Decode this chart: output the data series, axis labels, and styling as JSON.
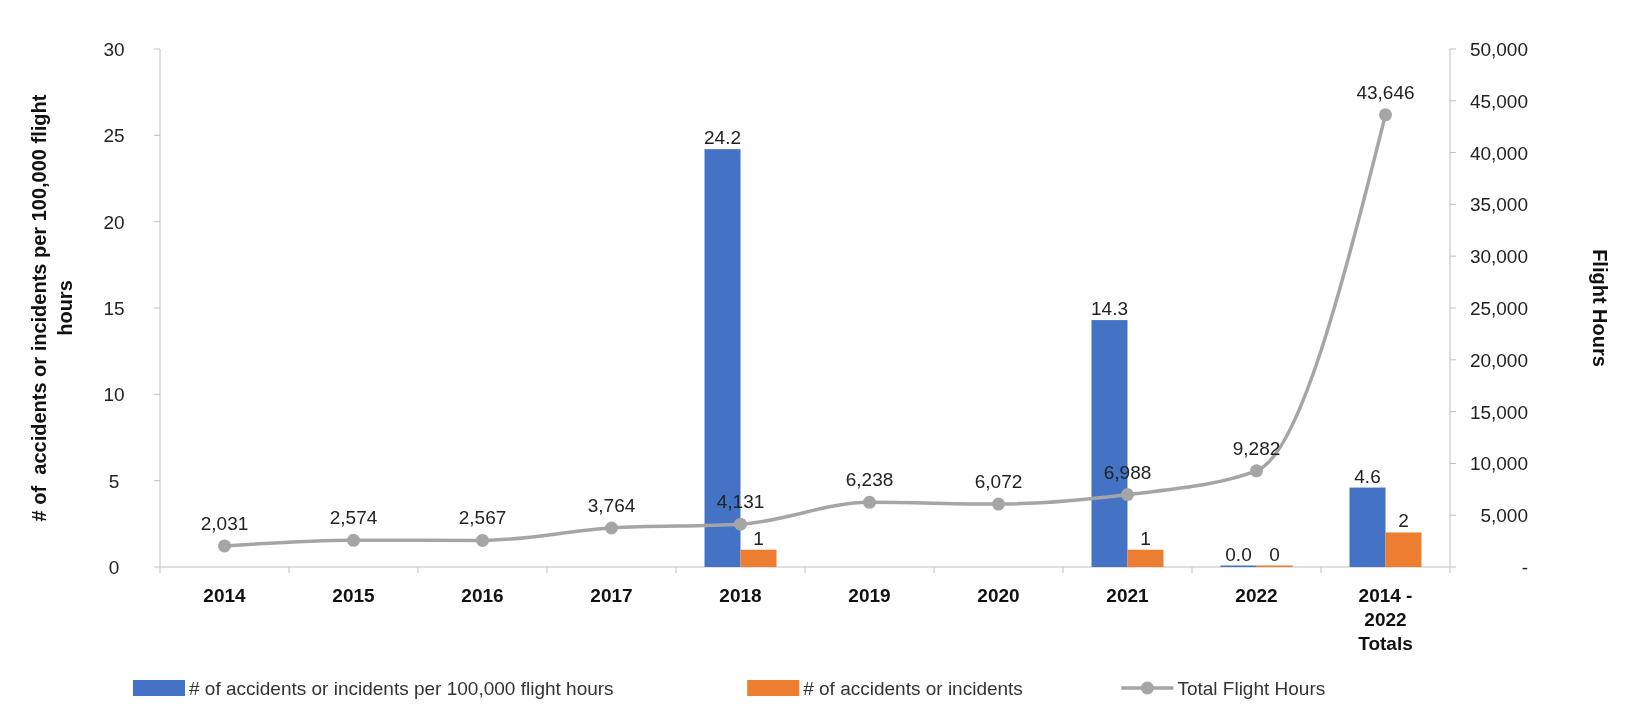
{
  "chart_data": {
    "type": "bar",
    "categories": [
      "2014",
      "2015",
      "2016",
      "2017",
      "2018",
      "2019",
      "2020",
      "2021",
      "2022",
      "2014 - 2022 Totals"
    ],
    "series": [
      {
        "name": "# of accidents or incidents per 100,000 flight hours",
        "color": "#4472c4",
        "values": [
          null,
          null,
          null,
          null,
          24.2,
          null,
          null,
          14.3,
          0.0,
          4.6
        ],
        "value_labels": [
          null,
          null,
          null,
          null,
          "24.2",
          null,
          null,
          "14.3",
          "0.0",
          "4.6"
        ]
      },
      {
        "name": "# of accidents or incidents",
        "color": "#ed7d31",
        "values": [
          null,
          null,
          null,
          null,
          1,
          null,
          null,
          1,
          0,
          2
        ],
        "value_labels": [
          null,
          null,
          null,
          null,
          "1",
          null,
          null,
          "1",
          "0",
          "2"
        ]
      },
      {
        "name": "Total Flight Hours",
        "type": "line",
        "axis": "y2",
        "marker": "circle",
        "color": "#a5a5a5",
        "values": [
          2031,
          2574,
          2567,
          3764,
          4131,
          6238,
          6072,
          6988,
          9282,
          43646
        ],
        "value_labels": [
          "2,031",
          "2,574",
          "2,567",
          "3,764",
          "4,131",
          "6,238",
          "6,072",
          "6,988",
          "9,282",
          "43,646"
        ]
      }
    ],
    "ylabel": "# of  accidents or incidents per 100,000 flight hours",
    "y2label": "Flight Hours",
    "ylim": [
      0,
      30
    ],
    "yticks": [
      0,
      5,
      10,
      15,
      20,
      25,
      30
    ],
    "y2lim": [
      0,
      50000
    ],
    "y2ticks": [
      {
        "value": 0,
        "label": "-"
      },
      {
        "value": 5000,
        "label": "5,000"
      },
      {
        "value": 10000,
        "label": "10,000"
      },
      {
        "value": 15000,
        "label": "15,000"
      },
      {
        "value": 20000,
        "label": "20,000"
      },
      {
        "value": 25000,
        "label": "25,000"
      },
      {
        "value": 30000,
        "label": "30,000"
      },
      {
        "value": 35000,
        "label": "35,000"
      },
      {
        "value": 40000,
        "label": "40,000"
      },
      {
        "value": 45000,
        "label": "45,000"
      },
      {
        "value": 50000,
        "label": "50,000"
      }
    ],
    "legend": "bottom"
  }
}
